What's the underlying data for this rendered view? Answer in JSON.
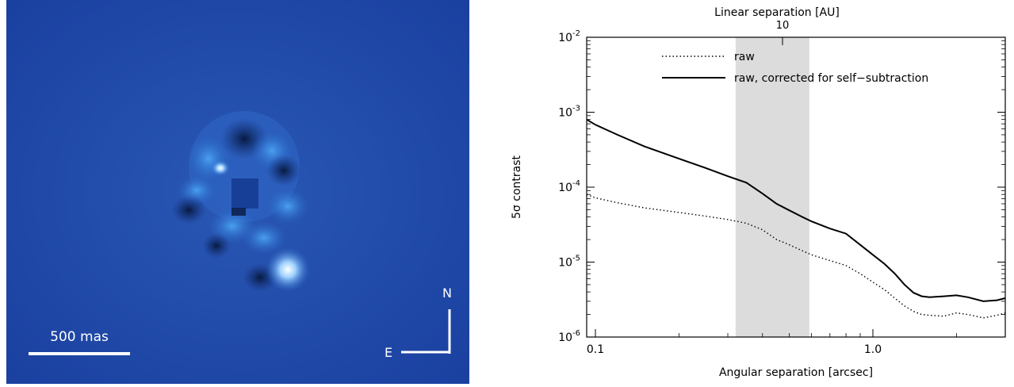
{
  "image_panel": {
    "scale_bar_label": "500 mas",
    "compass_north": "N",
    "compass_east": "E",
    "background_color": "#1e48a8"
  },
  "chart_data": {
    "type": "line",
    "title": "Linear separation [AU]",
    "top_axis_tick": "10",
    "xlabel": "Angular separation [arcsec]",
    "ylabel": "5σ contrast",
    "xscale": "log",
    "yscale": "log",
    "xlim": [
      0.093,
      3.0
    ],
    "ylim": [
      1e-06,
      0.01
    ],
    "x_ticks": [
      {
        "value": 0.1,
        "label": "0.1"
      },
      {
        "value": 1.0,
        "label": "1.0"
      }
    ],
    "y_ticks": [
      {
        "value": 0.01,
        "base": "10",
        "exp": "-2"
      },
      {
        "value": 0.001,
        "base": "10",
        "exp": "-3"
      },
      {
        "value": 0.0001,
        "base": "10",
        "exp": "-4"
      },
      {
        "value": 1e-05,
        "base": "10",
        "exp": "-5"
      },
      {
        "value": 1e-06,
        "base": "10",
        "exp": "-6"
      }
    ],
    "shaded_region": {
      "x": [
        0.32,
        0.59
      ],
      "color": "#dcdcdc"
    },
    "legend_position": "top-center",
    "series": [
      {
        "name": "raw",
        "style": "dotted",
        "x": [
          0.093,
          0.1,
          0.12,
          0.15,
          0.2,
          0.25,
          0.3,
          0.35,
          0.4,
          0.45,
          0.5,
          0.55,
          0.6,
          0.7,
          0.8,
          0.9,
          1.0,
          1.1,
          1.2,
          1.3,
          1.4,
          1.5,
          1.6,
          1.8,
          2.0,
          2.2,
          2.5,
          2.8,
          3.0
        ],
        "y": [
          8e-05,
          7.2e-05,
          6.2e-05,
          5.3e-05,
          4.6e-05,
          4.1e-05,
          3.7e-05,
          3.3e-05,
          2.7e-05,
          2e-05,
          1.7e-05,
          1.45e-05,
          1.25e-05,
          1.05e-05,
          9e-06,
          7e-06,
          5.4e-06,
          4.3e-06,
          3.3e-06,
          2.6e-06,
          2.2e-06,
          2e-06,
          1.95e-06,
          1.9e-06,
          2.1e-06,
          2e-06,
          1.8e-06,
          1.95e-06,
          2.1e-06
        ]
      },
      {
        "name": "raw, corrected for self−subtraction",
        "style": "solid",
        "x": [
          0.093,
          0.1,
          0.12,
          0.15,
          0.2,
          0.25,
          0.3,
          0.35,
          0.4,
          0.45,
          0.5,
          0.55,
          0.6,
          0.7,
          0.8,
          0.9,
          1.0,
          1.1,
          1.2,
          1.3,
          1.4,
          1.5,
          1.6,
          1.8,
          2.0,
          2.2,
          2.5,
          2.8,
          3.0
        ],
        "y": [
          0.0008,
          0.00068,
          0.0005,
          0.00035,
          0.00024,
          0.00018,
          0.00014,
          0.000115,
          8.2e-05,
          6e-05,
          4.9e-05,
          4.1e-05,
          3.5e-05,
          2.8e-05,
          2.4e-05,
          1.7e-05,
          1.25e-05,
          9.5e-06,
          7e-06,
          5e-06,
          3.9e-06,
          3.5e-06,
          3.4e-06,
          3.5e-06,
          3.6e-06,
          3.4e-06,
          3e-06,
          3.1e-06,
          3.3e-06
        ]
      }
    ]
  }
}
